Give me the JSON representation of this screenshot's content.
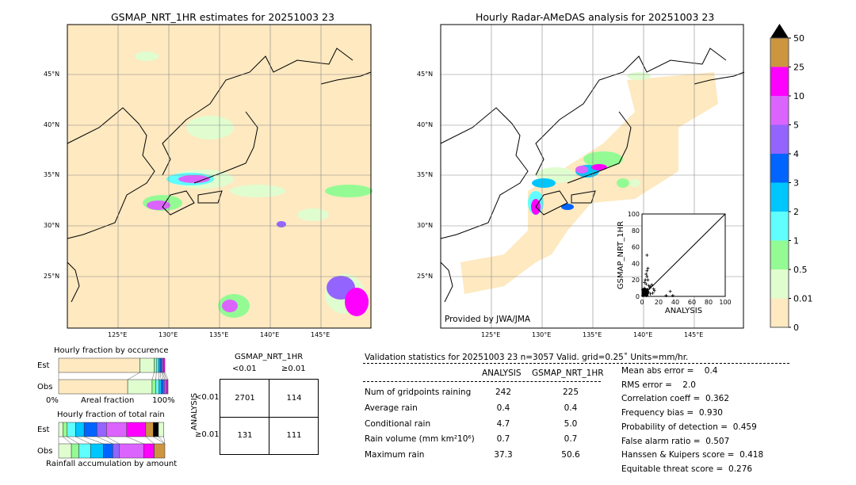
{
  "left_map": {
    "title": "GSMAP_NRT_1HR estimates for 20251003 23",
    "lat_labels": [
      "45°N",
      "40°N",
      "35°N",
      "30°N",
      "25°N"
    ],
    "lon_labels": [
      "125°E",
      "130°E",
      "135°E",
      "140°E",
      "145°E"
    ]
  },
  "right_map": {
    "title": "Hourly Radar-AMeDAS analysis for 20251003 23",
    "lat_labels": [
      "45°N",
      "40°N",
      "35°N",
      "30°N",
      "25°N"
    ],
    "lon_labels": [
      "125°E",
      "130°E",
      "135°E",
      "140°E",
      "145°E"
    ],
    "credit": "Provided by JWA/JMA"
  },
  "colorbar": {
    "labels": [
      "0",
      "0.01",
      "0.5",
      "1",
      "2",
      "3",
      "4",
      "5",
      "10",
      "25",
      "50"
    ],
    "colors": [
      "#fee9c0",
      "#e0fdd0",
      "#94fb94",
      "#60fefe",
      "#00c6fe",
      "#0064fe",
      "#9464fe",
      "#dc64fe",
      "#fe00fe",
      "#cc9640"
    ],
    "extend_color": "#000000"
  },
  "chart_data": [
    {
      "type": "scatter",
      "xlabel": "ANALYSIS",
      "ylabel": "GSMAP_NRT_1HR",
      "xlim": [
        0,
        100
      ],
      "ylim": [
        0,
        100
      ],
      "x_ticks": [
        "0",
        "20",
        "40",
        "60",
        "80",
        "100"
      ],
      "y_ticks": [
        "0",
        "20",
        "40",
        "60",
        "80",
        "100"
      ],
      "points": [
        [
          6,
          50
        ],
        [
          7,
          34
        ],
        [
          6,
          31
        ],
        [
          5,
          27
        ],
        [
          6,
          24
        ],
        [
          4,
          20
        ],
        [
          7,
          20
        ],
        [
          3,
          17
        ],
        [
          5,
          15
        ],
        [
          8,
          13
        ],
        [
          10,
          12
        ],
        [
          12,
          14
        ],
        [
          9,
          10
        ],
        [
          14,
          9
        ],
        [
          15,
          7
        ],
        [
          13,
          4
        ],
        [
          34,
          6
        ],
        [
          29,
          1
        ],
        [
          37,
          1
        ],
        [
          2,
          5
        ],
        [
          3,
          3
        ],
        [
          1,
          8
        ],
        [
          4,
          6
        ],
        [
          2,
          2
        ],
        [
          5,
          1
        ],
        [
          1,
          1
        ],
        [
          3,
          10
        ],
        [
          6,
          8
        ],
        [
          8,
          5
        ],
        [
          10,
          3
        ]
      ]
    },
    {
      "type": "bar",
      "title": "Hourly fraction by occurence",
      "xlabel": "Areal fraction",
      "x_left": "0%",
      "x_right": "100%",
      "series": [
        {
          "name": "Est",
          "values": [
            0.765,
            0.135,
            0.02,
            0.02,
            0.015,
            0.015,
            0.01,
            0.01,
            0.01
          ]
        },
        {
          "name": "Obs",
          "values": [
            0.65,
            0.23,
            0.035,
            0.03,
            0.02,
            0.02,
            0.015,
            0.015,
            0.015
          ]
        }
      ]
    },
    {
      "type": "bar",
      "title": "Hourly fraction of total rain",
      "xlabel": "Rainfall accumulation by amount",
      "series": [
        {
          "name": "Est",
          "values": [
            0.04,
            0.04,
            0.08,
            0.08,
            0.12,
            0.09,
            0.19,
            0.18,
            0.07,
            0.05,
            0.05
          ]
        },
        {
          "name": "Obs",
          "values": [
            0.12,
            0.07,
            0.11,
            0.12,
            0.09,
            0.06,
            0.23,
            0.1,
            0.1,
            0,
            0
          ]
        }
      ]
    }
  ],
  "contingency": {
    "col_title": "GSMAP_NRT_1HR",
    "row_title": "ANALYSIS",
    "col_labels": [
      "<0.01",
      "≥0.01"
    ],
    "row_labels": [
      "<0.01",
      "≥0.01"
    ],
    "cells": [
      [
        "2701",
        "114"
      ],
      [
        "131",
        "111"
      ]
    ]
  },
  "validation": {
    "header": "Validation statistics for 20251003 23  n=3057 Valid. grid=0.25˚ Units=mm/hr.",
    "col_analysis": "ANALYSIS",
    "col_gsmap": "GSMAP_NRT_1HR",
    "rows": [
      {
        "label": "Num of gridpoints raining",
        "a": "242",
        "g": "225"
      },
      {
        "label": "Average rain",
        "a": "0.4",
        "g": "0.4"
      },
      {
        "label": "Conditional rain",
        "a": "4.7",
        "g": "5.0"
      },
      {
        "label": "Rain volume (mm km²10⁶)",
        "a": "0.7",
        "g": "0.7"
      },
      {
        "label": "Maximum rain",
        "a": "37.3",
        "g": "50.6"
      }
    ],
    "scores": [
      "Mean abs error =    0.4",
      "RMS error =    2.0",
      "Correlation coeff =  0.362",
      "Frequency bias =  0.930",
      "Probability of detection =  0.459",
      "False alarm ratio =  0.507",
      "Hanssen & Kuipers score =  0.418",
      "Equitable threat score =  0.276"
    ]
  }
}
